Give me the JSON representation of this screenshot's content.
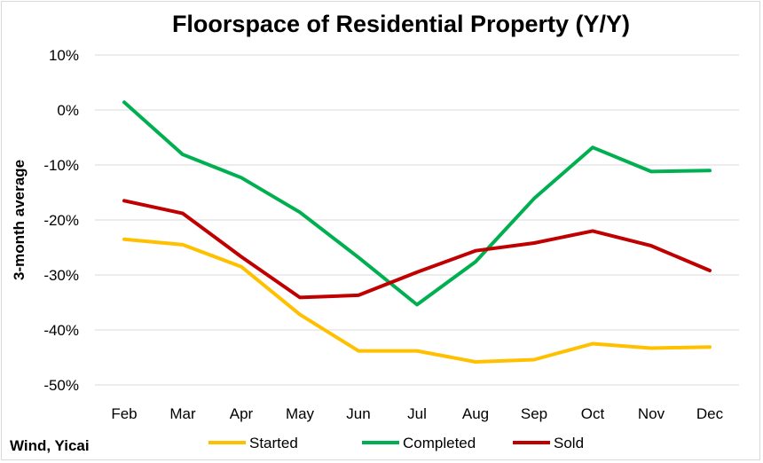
{
  "chart_data": {
    "type": "line",
    "title": "Floorspace of Residential Property (Y/Y)",
    "ylabel": "3-month average",
    "xlabel": "",
    "categories": [
      "Feb",
      "Mar",
      "Apr",
      "May",
      "Jun",
      "Jul",
      "Aug",
      "Sep",
      "Oct",
      "Nov",
      "Dec"
    ],
    "ylim": [
      -50,
      10
    ],
    "yticks": [
      10,
      0,
      -10,
      -20,
      -30,
      -40,
      -50
    ],
    "ytick_labels": [
      "10%",
      "0%",
      "-10%",
      "-20%",
      "-30%",
      "-40%",
      "-50%"
    ],
    "grid": true,
    "legend_position": "bottom",
    "series": [
      {
        "name": "Started",
        "color": "#ffc000",
        "values": [
          -23.5,
          -24.5,
          -28.5,
          -37.2,
          -43.8,
          -43.8,
          -45.8,
          -45.4,
          -42.5,
          -43.3,
          -43.1
        ]
      },
      {
        "name": "Completed",
        "color": "#00b050",
        "values": [
          1.4,
          -8.1,
          -12.3,
          -18.6,
          -26.8,
          -35.4,
          -27.6,
          -16.1,
          -6.8,
          -11.2,
          -11.0
        ]
      },
      {
        "name": "Sold",
        "color": "#c00000",
        "values": [
          -16.5,
          -18.8,
          -26.7,
          -34.1,
          -33.7,
          -29.5,
          -25.6,
          -24.2,
          -22.0,
          -24.7,
          -29.2
        ]
      }
    ]
  },
  "source_note": "Wind, Yicai"
}
